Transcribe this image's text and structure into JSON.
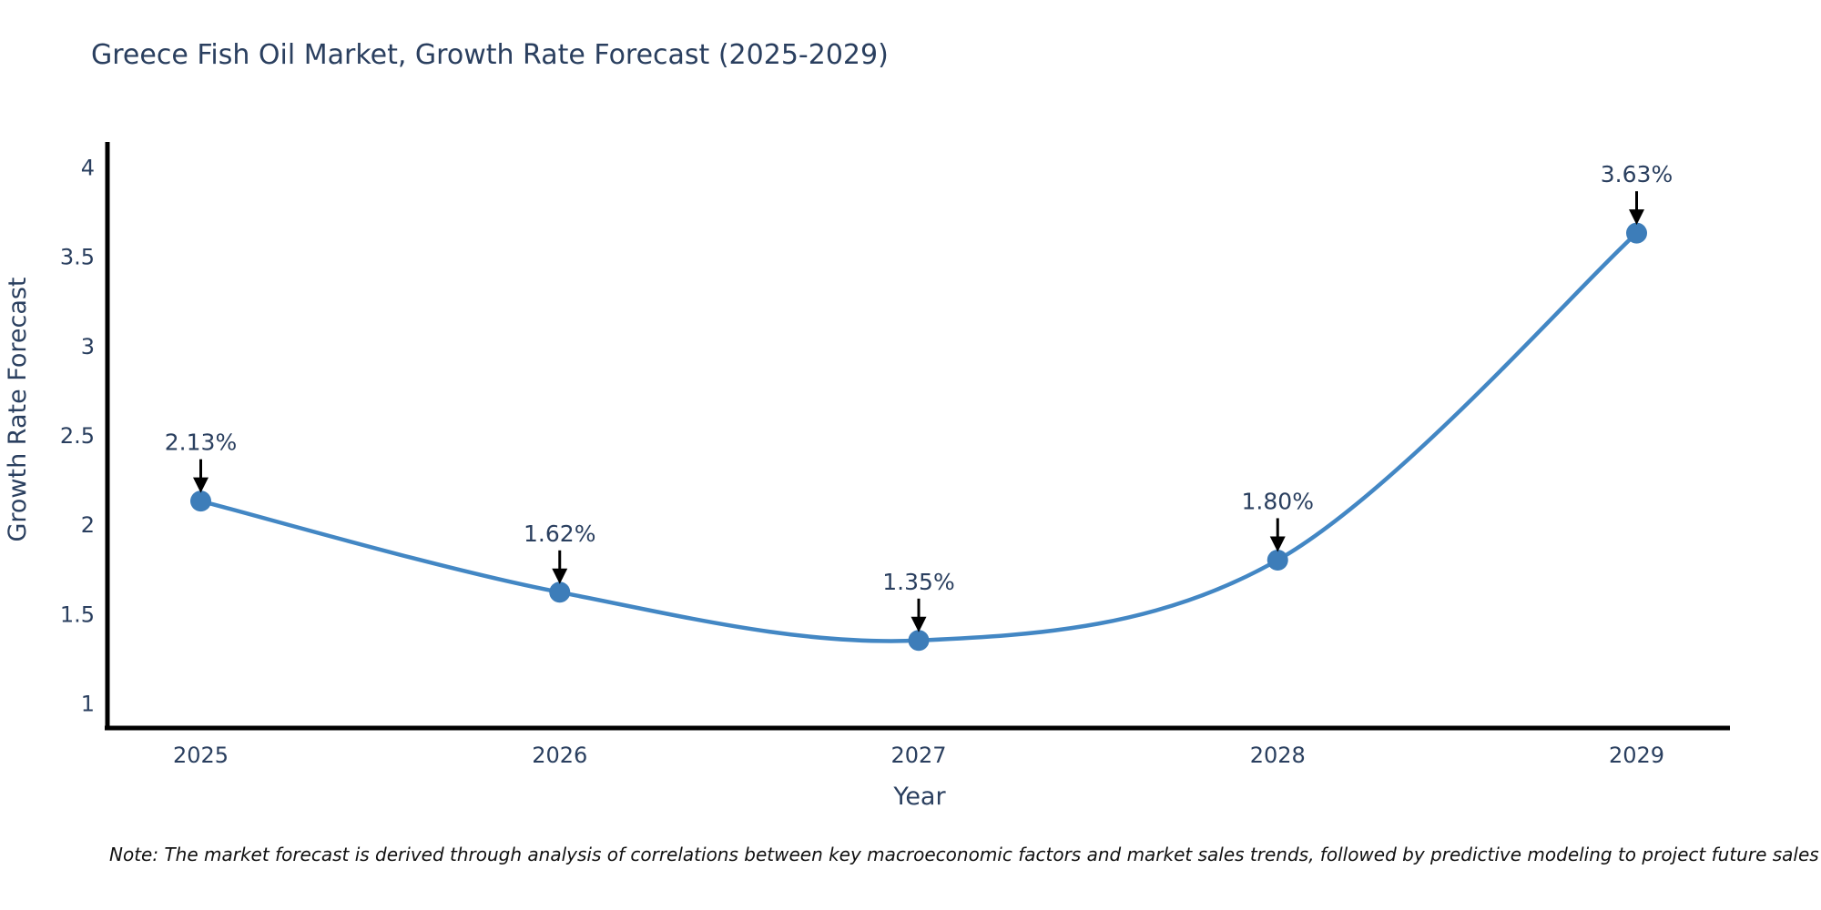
{
  "chart": {
    "note": "Note: The market forecast is derived through analysis of correlations between key macroeconomic factors and market sales trends, followed by predictive modeling to project future sales"
  },
  "chart_data": {
    "type": "line",
    "title": "Greece Fish Oil Market, Growth Rate Forecast (2025-2029)",
    "xlabel": "Year",
    "ylabel": "Growth Rate Forecast",
    "x": [
      2025,
      2026,
      2027,
      2028,
      2029
    ],
    "series": [
      {
        "name": "Growth Rate Forecast",
        "values": [
          2.13,
          1.62,
          1.35,
          1.8,
          3.63
        ]
      }
    ],
    "point_labels": [
      "2.13%",
      "1.62%",
      "1.35%",
      "1.80%",
      "3.63%"
    ],
    "xticks": [
      "2025",
      "2026",
      "2027",
      "2028",
      "2029"
    ],
    "yticks": [
      1,
      1.5,
      2,
      2.5,
      3,
      3.5,
      4
    ],
    "ytick_labels": [
      "1",
      "1.5",
      "2",
      "2.5",
      "3",
      "3.5",
      "4"
    ],
    "xlim": [
      2024.74,
      2029.26
    ],
    "ylim": [
      0.86,
      4.13
    ],
    "grid": false,
    "legend_position": "none",
    "line_shape": "spline",
    "colors": {
      "line": "#4387c4",
      "marker": "#3d7db9",
      "axis_line": "#000000",
      "tick_text": "#2a3f5f",
      "title_text": "#2a3f5f",
      "annotation_text": "#2a3f5f",
      "annotation_arrow": "#000000",
      "note_text": "#111111",
      "background": "#ffffff"
    }
  }
}
